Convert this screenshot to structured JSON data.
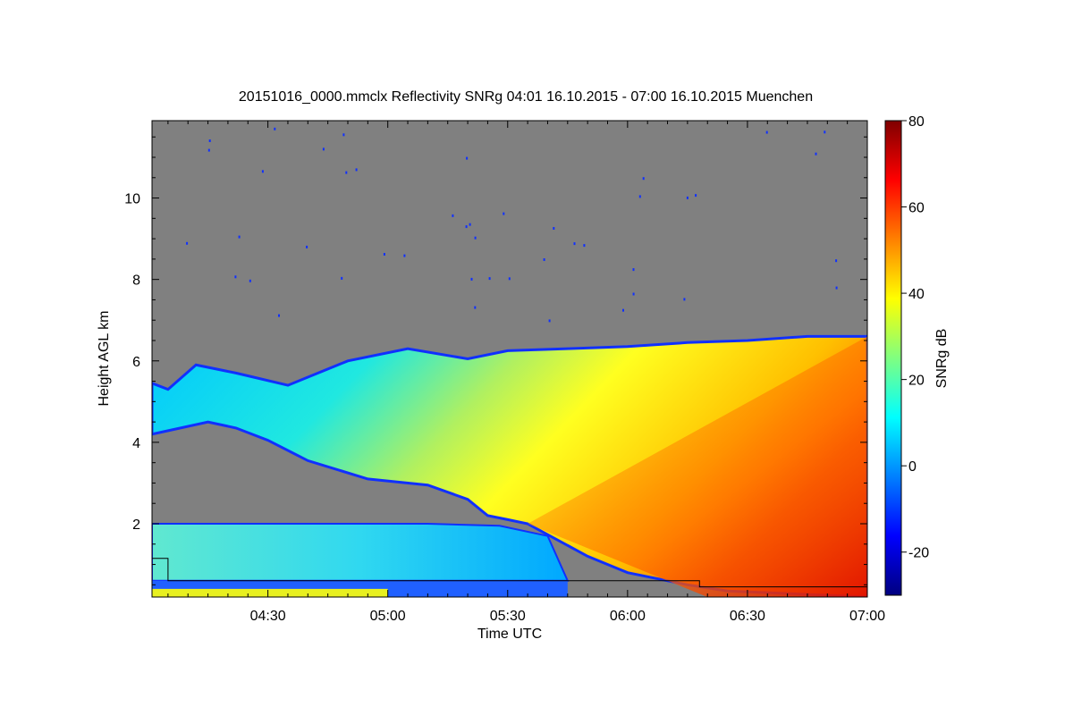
{
  "chart_data": {
    "type": "heatmap",
    "title": "20151016_0000.mmclx Reflectivity SNRg   04:01 16.10.2015 - 07:00 16.10.2015 Muenchen",
    "xlabel": "Time UTC",
    "ylabel": "Height AGL km",
    "x_range": [
      "04:01",
      "07:00"
    ],
    "xlim_minutes": [
      241,
      420
    ],
    "x_ticks": [
      {
        "label": "04:30",
        "minutes": 270
      },
      {
        "label": "05:00",
        "minutes": 300
      },
      {
        "label": "05:30",
        "minutes": 330
      },
      {
        "label": "06:00",
        "minutes": 360
      },
      {
        "label": "06:30",
        "minutes": 390
      },
      {
        "label": "07:00",
        "minutes": 420
      }
    ],
    "ylim": [
      0.2,
      11.9
    ],
    "y_ticks": [
      {
        "label": "2",
        "value": 2
      },
      {
        "label": "4",
        "value": 4
      },
      {
        "label": "6",
        "value": 6
      },
      {
        "label": "8",
        "value": 8
      },
      {
        "label": "10",
        "value": 10
      }
    ],
    "colorbar": {
      "label": "SNRg dB",
      "range": [
        -30,
        80
      ],
      "ticks": [
        {
          "label": "-20",
          "value": -20
        },
        {
          "label": "0",
          "value": 0
        },
        {
          "label": "20",
          "value": 20
        },
        {
          "label": "40",
          "value": 40
        },
        {
          "label": "60",
          "value": 60
        },
        {
          "label": "80",
          "value": 80
        }
      ],
      "colors": [
        "#00007f",
        "#0000ff",
        "#0080ff",
        "#00ffff",
        "#80ff80",
        "#ffff00",
        "#ff8000",
        "#ff0000",
        "#7f0000"
      ]
    },
    "no_signal_color": "#808080",
    "features": {
      "upper_cloud_top_km": [
        [
          241,
          5.45
        ],
        [
          245,
          5.3
        ],
        [
          252,
          5.9
        ],
        [
          262,
          5.7
        ],
        [
          275,
          5.4
        ],
        [
          290,
          6.0
        ],
        [
          305,
          6.3
        ],
        [
          320,
          6.05
        ],
        [
          330,
          6.25
        ],
        [
          345,
          6.3
        ],
        [
          360,
          6.35
        ],
        [
          375,
          6.45
        ],
        [
          390,
          6.5
        ],
        [
          405,
          6.6
        ],
        [
          420,
          6.6
        ]
      ],
      "upper_cloud_base_km": [
        [
          241,
          4.2
        ],
        [
          255,
          4.5
        ],
        [
          262,
          4.35
        ],
        [
          270,
          4.05
        ],
        [
          280,
          3.55
        ],
        [
          295,
          3.1
        ],
        [
          310,
          2.95
        ],
        [
          320,
          2.6
        ],
        [
          325,
          2.2
        ],
        [
          330,
          2.1
        ],
        [
          335,
          2.0
        ],
        [
          350,
          1.2
        ],
        [
          360,
          0.8
        ],
        [
          375,
          0.5
        ],
        [
          385,
          0.35
        ],
        [
          420,
          0.2
        ]
      ],
      "boundary_layer_top_km": [
        [
          241,
          2.0
        ],
        [
          280,
          2.0
        ],
        [
          310,
          2.0
        ],
        [
          328,
          1.95
        ],
        [
          340,
          1.7
        ]
      ],
      "signal_range_dB": [
        -30,
        60
      ]
    }
  }
}
